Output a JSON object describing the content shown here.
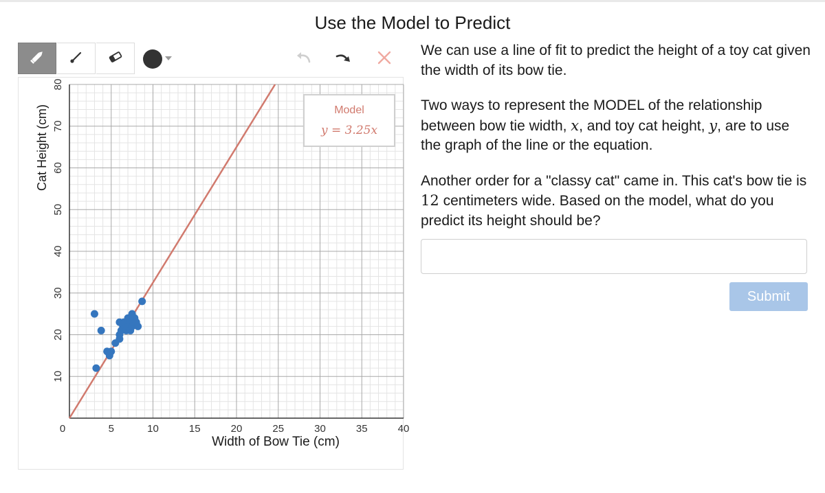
{
  "page": {
    "title": "Use the Model to Predict"
  },
  "toolbar": {
    "tools": [
      {
        "name": "pencil",
        "icon": "pencil-icon",
        "selected": true
      },
      {
        "name": "brush",
        "icon": "brush-icon",
        "selected": false
      },
      {
        "name": "eraser",
        "icon": "eraser-icon",
        "selected": false
      }
    ],
    "color": "#333333",
    "undo_icon": "undo-icon",
    "redo_icon": "redo-icon",
    "clear_icon": "close-icon"
  },
  "prompt": {
    "p1": "We can use a line of fit to predict the height of a toy cat given the width of its bow tie.",
    "p2_a": "Two ways to represent the MODEL of the relationship between bow tie width, ",
    "p2_x": "x",
    "p2_b": ", and toy cat height, ",
    "p2_y": "y",
    "p2_c": ", are to use the graph of the line or the equation.",
    "p3_a": "Another order for a \"classy cat\" came in. This cat's bow tie is ",
    "p3_num": "12",
    "p3_b": " centimeters wide. Based on the model, what do you predict its height should be?"
  },
  "answer": {
    "value": "",
    "placeholder": ""
  },
  "submit": {
    "label": "Submit"
  },
  "chart_data": {
    "type": "scatter",
    "xlabel": "Width of Bow Tie (cm)",
    "ylabel": "Cat Height (cm)",
    "xlim": [
      0,
      40
    ],
    "ylim": [
      0,
      80
    ],
    "xticks": [
      5,
      10,
      15,
      20,
      25,
      30,
      35,
      40
    ],
    "yticks": [
      10,
      20,
      30,
      40,
      50,
      60,
      70,
      80
    ],
    "origin_label": "0",
    "grid": true,
    "model": {
      "label": "Model",
      "equation": "y = 3.25x",
      "slope": 3.25,
      "color": "#d17a6e"
    },
    "point_color": "#3576be",
    "points": [
      [
        3,
        25
      ],
      [
        3.2,
        12
      ],
      [
        3.8,
        21
      ],
      [
        4.5,
        16
      ],
      [
        4.8,
        15
      ],
      [
        5,
        16
      ],
      [
        5.5,
        18
      ],
      [
        6,
        19
      ],
      [
        6,
        20
      ],
      [
        6.2,
        21
      ],
      [
        6,
        23
      ],
      [
        6.4,
        22
      ],
      [
        6.5,
        23
      ],
      [
        6.8,
        21
      ],
      [
        7,
        24
      ],
      [
        7,
        22
      ],
      [
        7.2,
        23
      ],
      [
        7.3,
        21
      ],
      [
        7.5,
        22
      ],
      [
        7.6,
        23
      ],
      [
        7.5,
        25
      ],
      [
        7.8,
        24
      ],
      [
        8,
        23
      ],
      [
        8.2,
        22
      ],
      [
        8.7,
        28
      ]
    ]
  }
}
